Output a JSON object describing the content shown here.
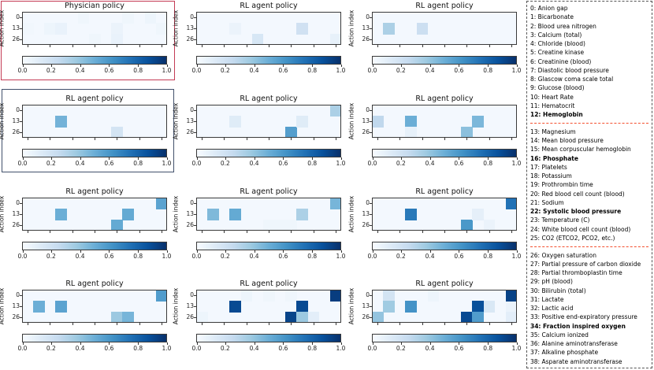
{
  "figure": {
    "ylabel": "Action index",
    "ytick_labels": [
      "0",
      "13",
      "26"
    ],
    "colorbar_tick_labels": [
      "0.0",
      "0.2",
      "0.4",
      "0.6",
      "0.8",
      "1.0"
    ],
    "colormap": "Blues",
    "physician_title": "Physician policy",
    "rl_title": "RL agent policy"
  },
  "colors": {
    "physician_box": "#c43b55",
    "rl_box": "#41506b",
    "legend_separator": "#f4502f",
    "axes_border": "#3a3a3a"
  },
  "chart_data": [
    {
      "type": "heatmap",
      "row": 1,
      "col": 1,
      "title": "Physician policy",
      "highlight": "physician_box",
      "grid": {
        "cols": 13,
        "rows": 3
      },
      "ytick_values": [
        0,
        13,
        26
      ],
      "value_range": [
        0,
        1
      ],
      "cells": [
        [
          0,
          1,
          0.03
        ],
        [
          2,
          1,
          0.05
        ],
        [
          3,
          1,
          0.07
        ],
        [
          5,
          0,
          0.04
        ],
        [
          6,
          2,
          0.04
        ],
        [
          8,
          1,
          0.06
        ],
        [
          8,
          2,
          0.07
        ],
        [
          9,
          0,
          0.04
        ],
        [
          11,
          0,
          0.05
        ],
        [
          12,
          1,
          0.04
        ]
      ]
    },
    {
      "type": "heatmap",
      "row": 1,
      "col": 2,
      "title": "RL agent policy",
      "highlight": null,
      "grid": {
        "cols": 13,
        "rows": 3
      },
      "ytick_values": [
        0,
        13,
        26
      ],
      "value_range": [
        0,
        1
      ],
      "cells": [
        [
          3,
          1,
          0.06
        ],
        [
          5,
          2,
          0.16
        ],
        [
          9,
          1,
          0.2
        ],
        [
          12,
          2,
          0.08
        ]
      ]
    },
    {
      "type": "heatmap",
      "row": 1,
      "col": 3,
      "title": "RL agent policy",
      "highlight": null,
      "grid": {
        "cols": 13,
        "rows": 3
      },
      "ytick_values": [
        0,
        13,
        26
      ],
      "value_range": [
        0,
        1
      ],
      "cells": [
        [
          1,
          1,
          0.33
        ],
        [
          4,
          1,
          0.22
        ]
      ]
    },
    {
      "type": "heatmap",
      "row": 2,
      "col": 1,
      "title": "RL agent policy",
      "highlight": "rl_box",
      "grid": {
        "cols": 13,
        "rows": 3
      },
      "ytick_values": [
        0,
        13,
        26
      ],
      "value_range": [
        0,
        1
      ],
      "cells": [
        [
          3,
          1,
          0.48
        ],
        [
          8,
          2,
          0.18
        ]
      ]
    },
    {
      "type": "heatmap",
      "row": 2,
      "col": 2,
      "title": "RL agent policy",
      "highlight": null,
      "grid": {
        "cols": 13,
        "rows": 3
      },
      "ytick_values": [
        0,
        13,
        26
      ],
      "value_range": [
        0,
        1
      ],
      "cells": [
        [
          3,
          1,
          0.12
        ],
        [
          8,
          2,
          0.57
        ],
        [
          9,
          1,
          0.12
        ],
        [
          12,
          0,
          0.33
        ]
      ]
    },
    {
      "type": "heatmap",
      "row": 2,
      "col": 3,
      "title": "RL agent policy",
      "highlight": null,
      "grid": {
        "cols": 13,
        "rows": 3
      },
      "ytick_values": [
        0,
        13,
        26
      ],
      "value_range": [
        0,
        1
      ],
      "cells": [
        [
          0,
          1,
          0.27
        ],
        [
          3,
          1,
          0.5
        ],
        [
          3,
          2,
          0.08
        ],
        [
          8,
          2,
          0.42
        ],
        [
          9,
          1,
          0.46
        ]
      ]
    },
    {
      "type": "heatmap",
      "row": 3,
      "col": 1,
      "title": "RL agent policy",
      "highlight": null,
      "grid": {
        "cols": 13,
        "rows": 3
      },
      "ytick_values": [
        0,
        13,
        26
      ],
      "value_range": [
        0,
        1
      ],
      "cells": [
        [
          3,
          1,
          0.5
        ],
        [
          8,
          2,
          0.52
        ],
        [
          9,
          1,
          0.52
        ],
        [
          12,
          0,
          0.55
        ]
      ]
    },
    {
      "type": "heatmap",
      "row": 3,
      "col": 2,
      "title": "RL agent policy",
      "highlight": null,
      "grid": {
        "cols": 13,
        "rows": 3
      },
      "ytick_values": [
        0,
        13,
        26
      ],
      "value_range": [
        0,
        1
      ],
      "cells": [
        [
          1,
          1,
          0.45
        ],
        [
          3,
          1,
          0.52
        ],
        [
          6,
          2,
          0.04
        ],
        [
          7,
          2,
          0.04
        ],
        [
          8,
          2,
          0.04
        ],
        [
          9,
          1,
          0.33
        ],
        [
          12,
          0,
          0.47
        ]
      ]
    },
    {
      "type": "heatmap",
      "row": 3,
      "col": 3,
      "title": "RL agent policy",
      "highlight": null,
      "grid": {
        "cols": 13,
        "rows": 3
      },
      "ytick_values": [
        0,
        13,
        26
      ],
      "value_range": [
        0,
        1
      ],
      "cells": [
        [
          3,
          1,
          0.72
        ],
        [
          8,
          2,
          0.6
        ],
        [
          9,
          1,
          0.09
        ],
        [
          10,
          2,
          0.06
        ],
        [
          12,
          0,
          0.75
        ]
      ]
    },
    {
      "type": "heatmap",
      "row": 4,
      "col": 1,
      "title": "RL agent policy",
      "highlight": null,
      "grid": {
        "cols": 13,
        "rows": 3
      },
      "ytick_values": [
        0,
        13,
        26
      ],
      "value_range": [
        0,
        1
      ],
      "cells": [
        [
          1,
          1,
          0.5
        ],
        [
          3,
          1,
          0.55
        ],
        [
          8,
          2,
          0.38
        ],
        [
          9,
          2,
          0.47
        ],
        [
          12,
          0,
          0.58
        ]
      ]
    },
    {
      "type": "heatmap",
      "row": 4,
      "col": 2,
      "title": "RL agent policy",
      "highlight": null,
      "grid": {
        "cols": 13,
        "rows": 3
      },
      "ytick_values": [
        0,
        13,
        26
      ],
      "value_range": [
        0,
        1
      ],
      "cells": [
        [
          0,
          2,
          0.05
        ],
        [
          3,
          1,
          0.9
        ],
        [
          4,
          0,
          0.05
        ],
        [
          6,
          0,
          0.04
        ],
        [
          8,
          0,
          0.04
        ],
        [
          8,
          2,
          0.92
        ],
        [
          9,
          1,
          0.9
        ],
        [
          9,
          2,
          0.38
        ],
        [
          10,
          2,
          0.1
        ],
        [
          12,
          0,
          0.95
        ]
      ]
    },
    {
      "type": "heatmap",
      "row": 4,
      "col": 3,
      "title": "RL agent policy",
      "highlight": null,
      "grid": {
        "cols": 13,
        "rows": 3
      },
      "ytick_values": [
        0,
        13,
        26
      ],
      "value_range": [
        0,
        1
      ],
      "cells": [
        [
          0,
          2,
          0.4
        ],
        [
          1,
          0,
          0.18
        ],
        [
          1,
          1,
          0.37
        ],
        [
          3,
          1,
          0.62
        ],
        [
          5,
          0,
          0.05
        ],
        [
          8,
          2,
          0.9
        ],
        [
          9,
          1,
          0.88
        ],
        [
          9,
          2,
          0.58
        ],
        [
          10,
          1,
          0.15
        ],
        [
          12,
          1,
          0.06
        ],
        [
          12,
          0,
          0.93
        ],
        [
          12,
          2,
          0.1
        ]
      ]
    }
  ],
  "legend": {
    "items": [
      {
        "num": "0",
        "label": "Anion gap",
        "bold": false
      },
      {
        "num": "1",
        "label": "Bicarbonate",
        "bold": false
      },
      {
        "num": "2",
        "label": "Blood urea nitrogen",
        "bold": false
      },
      {
        "num": "3",
        "label": "Calcium (total)",
        "bold": false
      },
      {
        "num": "4",
        "label": "Chloride (blood)",
        "bold": false
      },
      {
        "num": "5",
        "label": "Creatine kinase",
        "bold": false
      },
      {
        "num": "6",
        "label": "Creatinine (blood)",
        "bold": false
      },
      {
        "num": "7",
        "label": "Diastolic blood pressure",
        "bold": false
      },
      {
        "num": "8",
        "label": "Glascow coma scale total",
        "bold": false
      },
      {
        "num": "9",
        "label": "Glucose (blood)",
        "bold": false
      },
      {
        "num": "10",
        "label": "Heart Rate",
        "bold": false
      },
      {
        "num": "11",
        "label": "Hematocrit",
        "bold": false
      },
      {
        "num": "12",
        "label": "Hemoglobin",
        "bold": true
      },
      {
        "num": "13",
        "label": "Magnesium",
        "bold": false
      },
      {
        "num": "14",
        "label": "Mean blood pressure",
        "bold": false
      },
      {
        "num": "15",
        "label": "Mean corpuscular hemoglobin",
        "bold": false
      },
      {
        "num": "16",
        "label": "Phosphate",
        "bold": true
      },
      {
        "num": "17",
        "label": "Platelets",
        "bold": false
      },
      {
        "num": "18",
        "label": "Potassium",
        "bold": false
      },
      {
        "num": "19",
        "label": "Prothrombin time",
        "bold": false
      },
      {
        "num": "20",
        "label": "Red blood cell count (blood)",
        "bold": false
      },
      {
        "num": "21",
        "label": "Sodium",
        "bold": false
      },
      {
        "num": "22",
        "label": "Systolic blood pressure",
        "bold": true
      },
      {
        "num": "23",
        "label": "Temperature (C)",
        "bold": false
      },
      {
        "num": "24",
        "label": "White blood cell count (blood)",
        "bold": false
      },
      {
        "num": "25",
        "label": "CO2 (ETCO2, PCO2, etc.)",
        "bold": false
      },
      {
        "num": "26",
        "label": "Oxygen saturation",
        "bold": false
      },
      {
        "num": "27",
        "label": "Partial pressure of carbon dioxide",
        "bold": false
      },
      {
        "num": "28",
        "label": "Partial thromboplastin time",
        "bold": false
      },
      {
        "num": "29",
        "label": "pH (blood)",
        "bold": false
      },
      {
        "num": "30",
        "label": "Bilirubin (total)",
        "bold": false
      },
      {
        "num": "31",
        "label": "Lactate",
        "bold": false
      },
      {
        "num": "32",
        "label": "Lactic acid",
        "bold": false
      },
      {
        "num": "33",
        "label": "Positive end-expiratory pressure",
        "bold": false
      },
      {
        "num": "34",
        "label": "Fraction inspired oxygen",
        "bold": true
      },
      {
        "num": "35",
        "label": "Calcium ionized",
        "bold": false
      },
      {
        "num": "36",
        "label": "Alanine aminotransferase",
        "bold": false
      },
      {
        "num": "37",
        "label": "Alkaline phosphate",
        "bold": false
      },
      {
        "num": "38",
        "label": "Asparate aminotransferase",
        "bold": false
      }
    ],
    "separator_after_nums": [
      "12",
      "25"
    ]
  }
}
